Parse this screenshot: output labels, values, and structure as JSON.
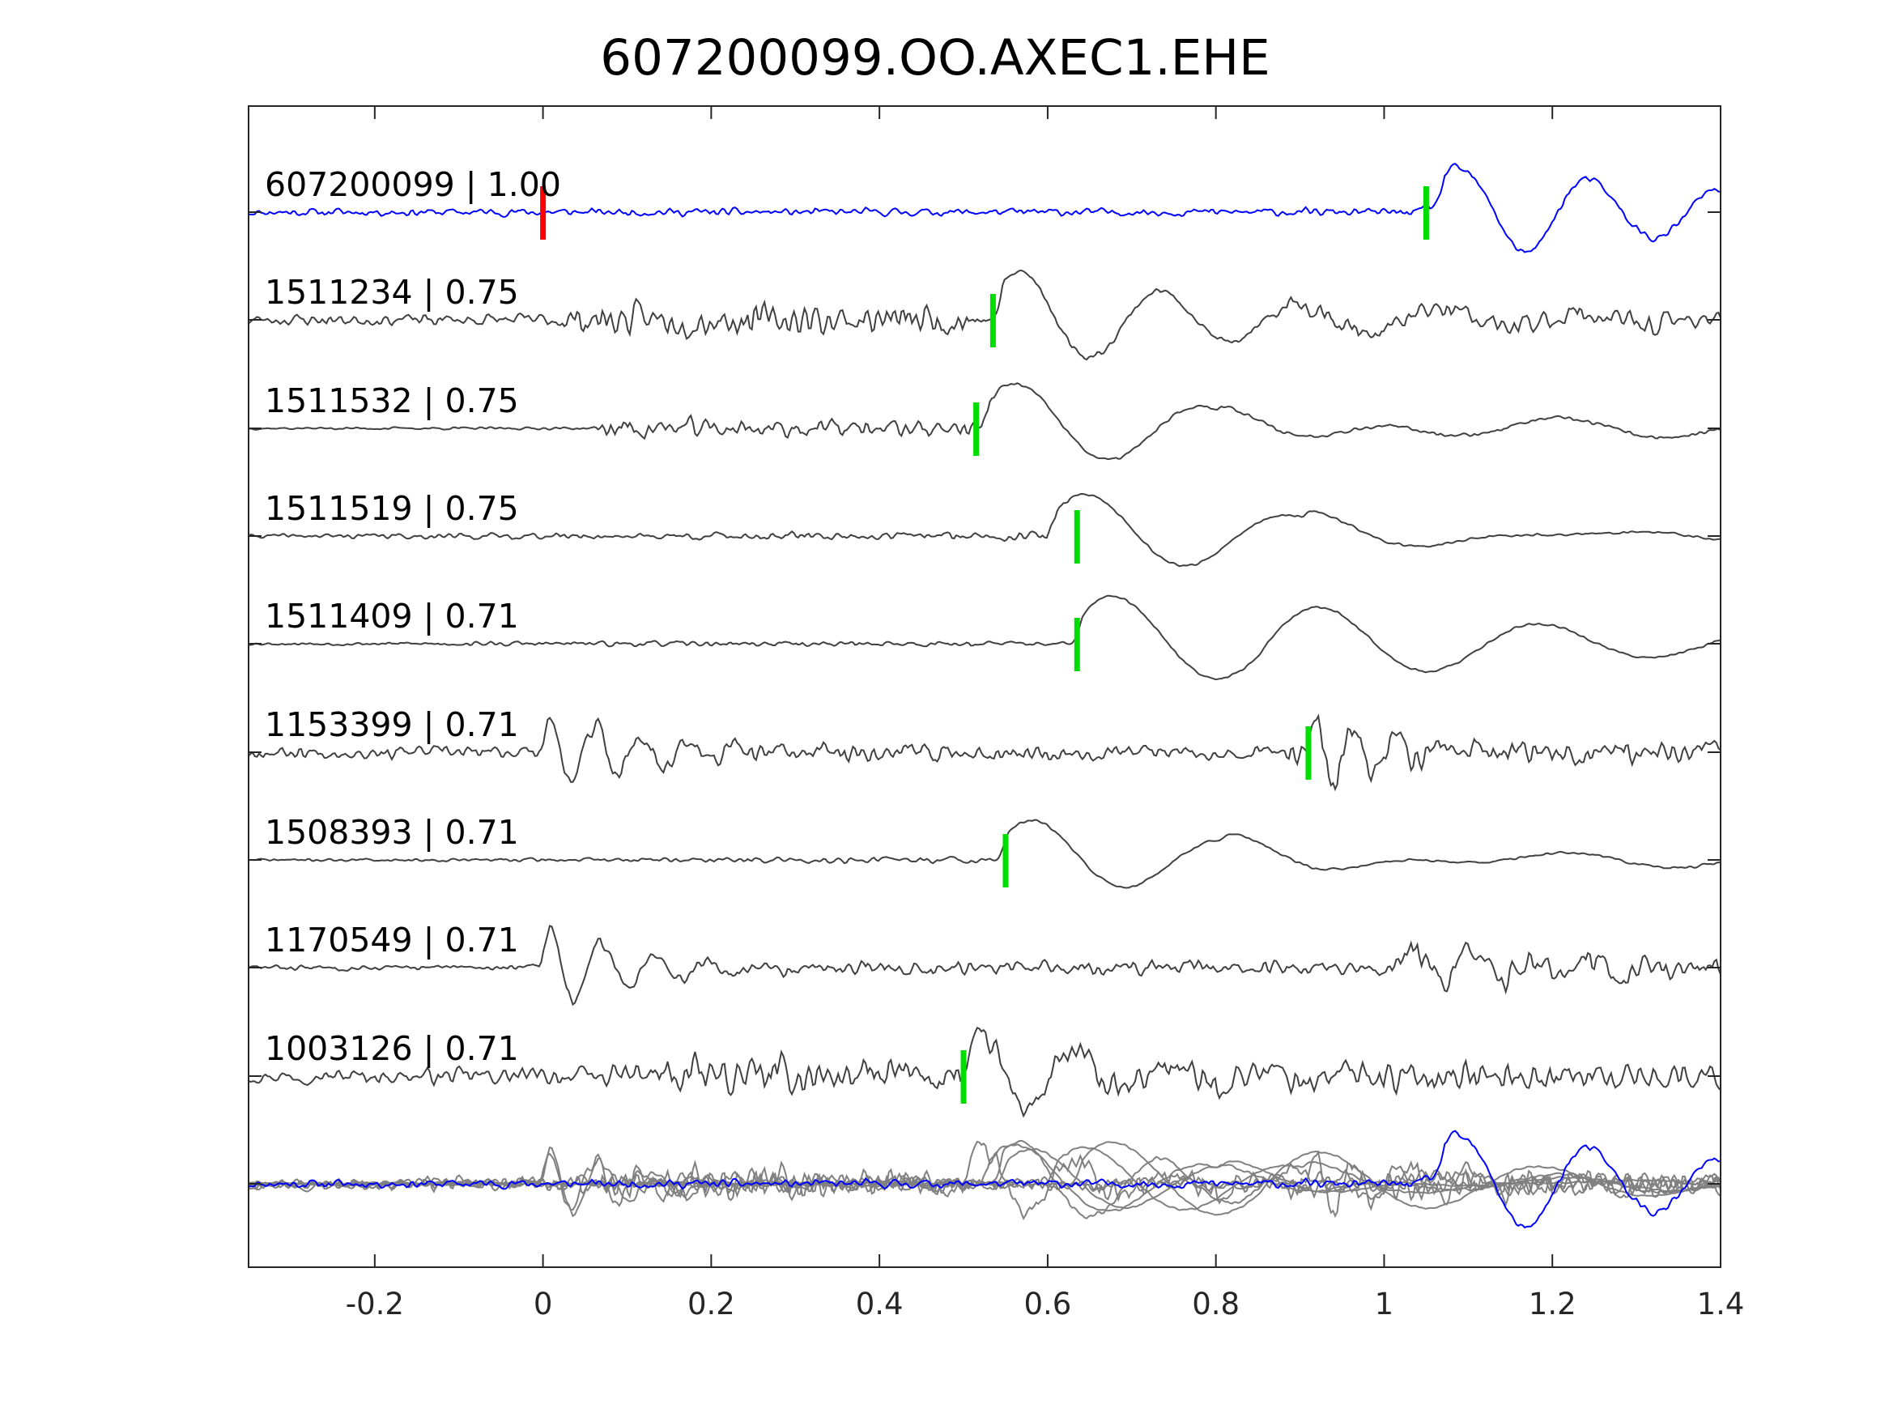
{
  "chart_data": {
    "type": "line",
    "title": "607200099.OO.AXEC1.EHE",
    "xlabel": "",
    "ylabel": "",
    "xlim": [
      -0.35,
      1.4
    ],
    "xticks": [
      -0.2,
      0,
      0.2,
      0.4,
      0.6,
      0.8,
      1,
      1.2,
      1.4
    ],
    "xtick_labels": [
      "-0.2",
      "0",
      "0.2",
      "0.4",
      "0.6",
      "0.8",
      "1",
      "1.2",
      "1.4"
    ],
    "grid": false,
    "colors": {
      "target": "#0000ff",
      "template": "#404040",
      "overlay": "#808080",
      "pick_green": "#00dd00",
      "pick_red": "#ff0000",
      "axes": "#262626"
    },
    "series": [
      {
        "name": "607200099 | 1.00",
        "id": "607200099",
        "cc": "1.00",
        "role": "target",
        "picks": [
          {
            "t": 0.0,
            "color": "red"
          },
          {
            "t": 1.05,
            "color": "green"
          }
        ],
        "wave": {
          "seed": 11,
          "noise": [
            [
              -0.35,
              0.06
            ],
            [
              1.0,
              0.06
            ],
            [
              1.03,
              0.06
            ],
            [
              1.4,
              0.06
            ]
          ],
          "bursts": [
            {
              "t0": 1.06,
              "f": 6.5,
              "amp": 0.95,
              "dur": 0.4
            },
            {
              "t0": 1.04,
              "f": 12,
              "amp": 0.12,
              "dur": 0.15
            }
          ]
        }
      },
      {
        "name": "1511234 | 0.75",
        "id": "1511234",
        "cc": "0.75",
        "role": "template",
        "picks": [
          {
            "t": 0.535,
            "color": "green"
          }
        ],
        "wave": {
          "seed": 23,
          "noise": [
            [
              -0.35,
              0.09
            ],
            [
              0.0,
              0.1
            ],
            [
              0.07,
              0.26
            ],
            [
              0.5,
              0.24
            ],
            [
              0.55,
              0.05
            ],
            [
              0.85,
              0.05
            ],
            [
              0.9,
              0.17
            ],
            [
              1.4,
              0.17
            ]
          ],
          "bursts": [
            {
              "t0": 0.535,
              "f": 6.0,
              "amp": 1.0,
              "dur": 0.32
            }
          ]
        }
      },
      {
        "name": "1511532 | 0.75",
        "id": "1511532",
        "cc": "0.75",
        "role": "template",
        "picks": [
          {
            "t": 0.515,
            "color": "green"
          }
        ],
        "wave": {
          "seed": 37,
          "noise": [
            [
              -0.35,
              0.02
            ],
            [
              0.06,
              0.02
            ],
            [
              0.08,
              0.17
            ],
            [
              0.5,
              0.13
            ],
            [
              0.55,
              0.03
            ],
            [
              1.4,
              0.03
            ]
          ],
          "bursts": [
            {
              "t0": 0.52,
              "f": 4.5,
              "amp": 0.95,
              "dur": 0.32
            },
            {
              "t0": 0.8,
              "f": 3.2,
              "amp": 0.25,
              "dur": 0.6
            }
          ]
        }
      },
      {
        "name": "1511519 | 0.75",
        "id": "1511519",
        "cc": "0.75",
        "role": "template",
        "picks": [
          {
            "t": 0.635,
            "color": "green"
          }
        ],
        "wave": {
          "seed": 41,
          "noise": [
            [
              -0.35,
              0.03
            ],
            [
              0.0,
              0.05
            ],
            [
              0.6,
              0.07
            ],
            [
              0.65,
              0.02
            ],
            [
              1.4,
              0.02
            ]
          ],
          "bursts": [
            {
              "t0": 0.6,
              "f": 4.2,
              "amp": 0.9,
              "dur": 0.34
            },
            {
              "t0": 0.9,
              "f": 3.4,
              "amp": 0.35,
              "dur": 0.5
            }
          ]
        }
      },
      {
        "name": "1511409 | 0.71",
        "id": "1511409",
        "cc": "0.71",
        "role": "template",
        "picks": [
          {
            "t": 0.635,
            "color": "green"
          }
        ],
        "wave": {
          "seed": 53,
          "noise": [
            [
              -0.35,
              0.02
            ],
            [
              0.05,
              0.04
            ],
            [
              0.6,
              0.04
            ],
            [
              0.65,
              0.02
            ],
            [
              1.4,
              0.02
            ]
          ],
          "bursts": [
            {
              "t0": 0.63,
              "f": 4.0,
              "amp": 1.0,
              "dur": 0.4
            },
            {
              "t0": 0.85,
              "f": 3.4,
              "amp": 0.25,
              "dur": 0.55
            }
          ]
        }
      },
      {
        "name": "1153399 | 0.71",
        "id": "1153399",
        "cc": "0.71",
        "role": "template",
        "picks": [
          {
            "t": 0.91,
            "color": "green"
          }
        ],
        "wave": {
          "seed": 67,
          "noise": [
            [
              -0.35,
              0.1
            ],
            [
              -0.02,
              0.1
            ],
            [
              0.0,
              0.12
            ],
            [
              0.1,
              0.17
            ],
            [
              0.85,
              0.1
            ],
            [
              0.92,
              0.22
            ],
            [
              1.4,
              0.16
            ]
          ],
          "bursts": [
            {
              "t0": -0.005,
              "f": 18,
              "amp": 0.85,
              "dur": 0.11
            },
            {
              "t0": 0.905,
              "f": 20,
              "amp": 0.9,
              "dur": 0.08
            }
          ]
        }
      },
      {
        "name": "1508393 | 0.71",
        "id": "1508393",
        "cc": "0.71",
        "role": "template",
        "picks": [
          {
            "t": 0.55,
            "color": "green"
          }
        ],
        "wave": {
          "seed": 71,
          "noise": [
            [
              -0.35,
              0.02
            ],
            [
              0.05,
              0.03
            ],
            [
              0.5,
              0.06
            ],
            [
              0.55,
              0.02
            ],
            [
              1.4,
              0.02
            ]
          ],
          "bursts": [
            {
              "t0": 0.54,
              "f": 4.5,
              "amp": 0.85,
              "dur": 0.3
            },
            {
              "t0": 0.8,
              "f": 3.2,
              "amp": 0.25,
              "dur": 0.6
            }
          ]
        }
      },
      {
        "name": "1170549 | 0.71",
        "id": "1170549",
        "cc": "0.71",
        "role": "template",
        "picks": [],
        "wave": {
          "seed": 83,
          "noise": [
            [
              -0.35,
              0.04
            ],
            [
              -0.02,
              0.04
            ],
            [
              0.0,
              0.12
            ],
            [
              0.15,
              0.1
            ],
            [
              1.0,
              0.11
            ],
            [
              1.02,
              0.22
            ],
            [
              1.4,
              0.18
            ]
          ],
          "bursts": [
            {
              "t0": -0.005,
              "f": 16,
              "amp": 0.9,
              "dur": 0.12
            },
            {
              "t0": 1.02,
              "f": 14,
              "amp": 0.35,
              "dur": 0.2
            }
          ]
        }
      },
      {
        "name": "1003126 | 0.71",
        "id": "1003126",
        "cc": "0.71",
        "role": "template",
        "picks": [
          {
            "t": 0.5,
            "color": "green"
          }
        ],
        "wave": {
          "seed": 97,
          "noise": [
            [
              -0.35,
              0.1
            ],
            [
              0.07,
              0.14
            ],
            [
              0.12,
              0.3
            ],
            [
              0.48,
              0.3
            ],
            [
              0.52,
              0.12
            ],
            [
              0.55,
              0.25
            ],
            [
              1.4,
              0.2
            ]
          ],
          "bursts": [
            {
              "t0": 0.5,
              "f": 9,
              "amp": 0.85,
              "dur": 0.18
            }
          ]
        }
      }
    ],
    "overlay": {
      "description_in_pixels": false
    }
  }
}
